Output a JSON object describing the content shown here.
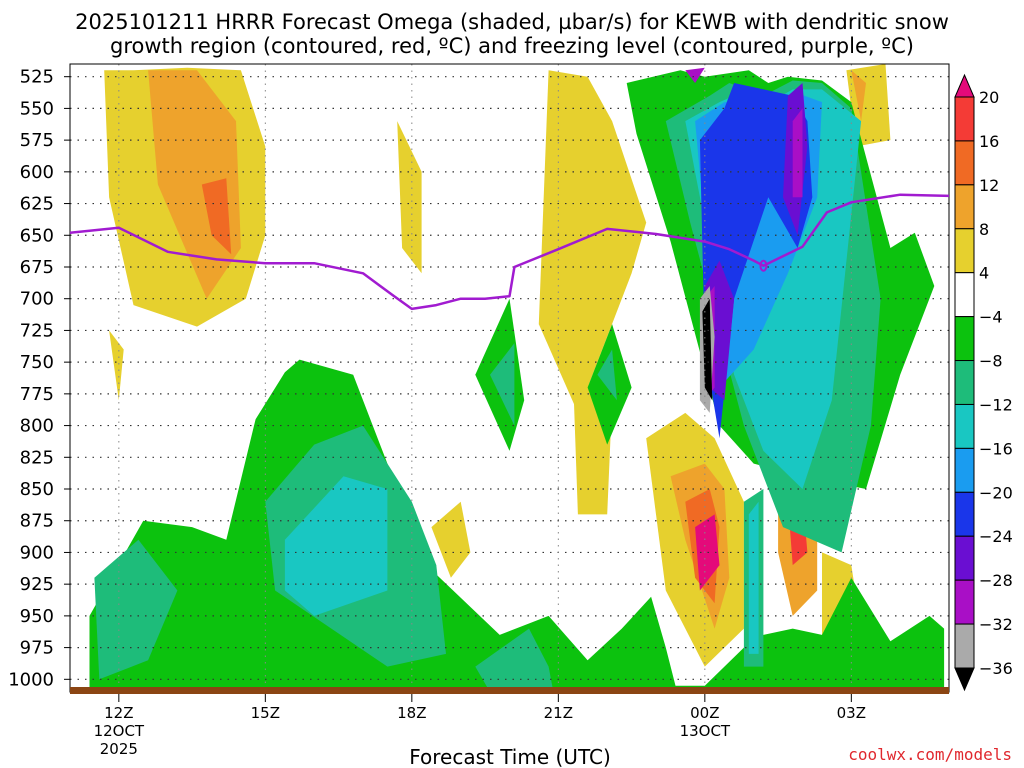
{
  "chart_data": {
    "type": "heatmap",
    "title_line1": "2025101211 HRRR Forecast Omega (shaded, µbar/s) for KEWB with dendritic snow",
    "title_line2": "growth region (contoured, red, ºC) and freezing level (contoured, purple, ºC)",
    "xlabel": "Forecast Time (UTC)",
    "credit": "coolwx.com/models",
    "xticks": [
      {
        "label": "12Z",
        "sub1": "12OCT",
        "sub2": "2025",
        "hour": 12
      },
      {
        "label": "15Z",
        "sub1": "",
        "sub2": "",
        "hour": 15
      },
      {
        "label": "18Z",
        "sub1": "",
        "sub2": "",
        "hour": 18
      },
      {
        "label": "21Z",
        "sub1": "",
        "sub2": "",
        "hour": 21
      },
      {
        "label": "00Z",
        "sub1": "13OCT",
        "sub2": "",
        "hour": 24
      },
      {
        "label": "03Z",
        "sub1": "",
        "sub2": "",
        "hour": 27
      }
    ],
    "xlim": [
      11,
      29
    ],
    "ylim": [
      1010,
      515
    ],
    "yticks": [
      525,
      550,
      575,
      600,
      625,
      650,
      675,
      700,
      725,
      750,
      775,
      800,
      825,
      850,
      875,
      900,
      925,
      950,
      975,
      1000
    ],
    "colorbar": {
      "levels": [
        "20",
        "16",
        "12",
        "8",
        "4",
        "−4",
        "−8",
        "−12",
        "−16",
        "−20",
        "−24",
        "−28",
        "−32",
        "−36"
      ],
      "colors": [
        "#e40a7a",
        "#f43b36",
        "#f06a24",
        "#eea32c",
        "#e6d02e",
        "#ffffff",
        "#0cc20e",
        "#1ebc7a",
        "#19c7c2",
        "#1a9cf0",
        "#1a36ea",
        "#6a0ed2",
        "#a90fc6",
        "#aaaaaa",
        "#000000"
      ]
    },
    "freezing_level": {
      "color": "#a11bd0",
      "hours": [
        11.0,
        12.0,
        13.0,
        14.0,
        15.0,
        16.0,
        17.0,
        17.6,
        18.0,
        18.5,
        19.0,
        19.5,
        20.0,
        20.1,
        21.0,
        22.0,
        23.0,
        24.0,
        24.5,
        25.0,
        25.2,
        26.0,
        26.5,
        27.0,
        28.0,
        29.0
      ],
      "pressure": [
        648,
        644,
        663,
        669,
        672,
        672,
        680,
        697,
        708,
        705,
        700,
        700,
        698,
        675,
        661,
        645,
        649,
        655,
        661,
        670,
        674,
        659,
        632,
        624,
        618,
        619
      ]
    },
    "regions": [
      {
        "color": "#e6d02e",
        "hours": [
          11.7,
          12.3,
          13.4,
          14.5,
          15.0,
          15.0,
          14.6,
          13.6,
          12.3,
          11.8
        ],
        "pressure": [
          520,
          520,
          518,
          520,
          580,
          650,
          700,
          722,
          705,
          620
        ]
      },
      {
        "color": "#eea32c",
        "hours": [
          12.6,
          13.6,
          14.4,
          14.5,
          13.8,
          12.8
        ],
        "pressure": [
          520,
          520,
          560,
          660,
          700,
          610
        ]
      },
      {
        "color": "#f06a24",
        "hours": [
          13.7,
          14.2,
          14.3,
          13.9
        ],
        "pressure": [
          610,
          605,
          665,
          650
        ]
      },
      {
        "color": "#e6d02e",
        "hours": [
          11.8,
          12.1,
          12.0
        ],
        "pressure": [
          725,
          740,
          780
        ]
      },
      {
        "color": "#e6d02e",
        "hours": [
          17.7,
          18.2,
          18.2,
          17.8
        ],
        "pressure": [
          560,
          600,
          680,
          660
        ]
      },
      {
        "color": "#e6d02e",
        "hours": [
          20.8,
          21.6,
          22.1,
          22.8,
          22.5,
          21.4,
          20.6
        ],
        "pressure": [
          520,
          525,
          560,
          640,
          680,
          790,
          720
        ]
      },
      {
        "color": "#e6d02e",
        "hours": [
          21.3,
          22.1,
          22.0,
          21.4
        ],
        "pressure": [
          760,
          780,
          870,
          870
        ]
      },
      {
        "color": "#e6d02e",
        "hours": [
          18.4,
          19.0,
          19.2,
          18.8
        ],
        "pressure": [
          880,
          860,
          900,
          920
        ]
      },
      {
        "color": "#e6d02e",
        "hours": [
          22.8,
          23.6,
          24.2,
          24.8,
          24.8,
          24.0,
          23.2
        ],
        "pressure": [
          810,
          790,
          810,
          860,
          960,
          990,
          930
        ]
      },
      {
        "color": "#e6d02e",
        "hours": [
          26.4,
          27.0,
          27.2,
          26.4
        ],
        "pressure": [
          900,
          910,
          960,
          975
        ]
      },
      {
        "color": "#e6d02e",
        "hours": [
          26.9,
          27.7,
          27.8,
          27.1
        ],
        "pressure": [
          520,
          515,
          575,
          580
        ]
      },
      {
        "color": "#eea32c",
        "hours": [
          27.0,
          27.3,
          27.2
        ],
        "pressure": [
          520,
          530,
          560
        ]
      },
      {
        "color": "#eea32c",
        "hours": [
          23.3,
          24.0,
          24.4,
          24.5,
          24.2,
          23.6
        ],
        "pressure": [
          840,
          830,
          850,
          920,
          960,
          890
        ]
      },
      {
        "color": "#f06a24",
        "hours": [
          23.6,
          24.1,
          24.3,
          24.2,
          23.8
        ],
        "pressure": [
          860,
          850,
          880,
          940,
          920
        ]
      },
      {
        "color": "#e40a7a",
        "hours": [
          23.8,
          24.2,
          24.3,
          23.9
        ],
        "pressure": [
          880,
          870,
          910,
          930
        ]
      },
      {
        "color": "#eea32c",
        "hours": [
          25.5,
          26.0,
          26.3,
          26.3,
          25.8,
          25.5
        ],
        "pressure": [
          840,
          830,
          870,
          930,
          950,
          900
        ]
      },
      {
        "color": "#f43b36",
        "hours": [
          25.7,
          26.0,
          26.1,
          25.8
        ],
        "pressure": [
          860,
          855,
          900,
          910
        ]
      },
      {
        "color": "#0cc20e",
        "hours": [
          11.4,
          12.5,
          13.5,
          14.2,
          14.8,
          15.4,
          15.7,
          16.8,
          18.3,
          19.8,
          20.8,
          21.6,
          22.3,
          22.9,
          23.2,
          23.4,
          24.0,
          24.8,
          25.2,
          25.8,
          26.4,
          27.0,
          27.8,
          28.6,
          28.9,
          28.9,
          11.4
        ],
        "pressure": [
          950,
          875,
          880,
          890,
          795,
          758,
          748,
          760,
          910,
          965,
          950,
          985,
          960,
          935,
          975,
          1005,
          1005,
          975,
          965,
          960,
          965,
          920,
          970,
          950,
          960,
          1012,
          1012
        ]
      },
      {
        "color": "#1ebc7a",
        "hours": [
          11.5,
          12.4,
          13.2,
          12.6,
          11.6
        ],
        "pressure": [
          920,
          890,
          930,
          985,
          1000
        ]
      },
      {
        "color": "#1ebc7a",
        "hours": [
          15.0,
          16.0,
          17.0,
          18.0,
          18.5,
          18.7,
          17.5,
          15.2
        ],
        "pressure": [
          860,
          815,
          800,
          860,
          910,
          980,
          990,
          930
        ]
      },
      {
        "color": "#19c7c2",
        "hours": [
          15.4,
          16.6,
          17.5,
          17.5,
          16.0,
          15.4
        ],
        "pressure": [
          890,
          840,
          850,
          930,
          950,
          930
        ]
      },
      {
        "color": "#1ebc7a",
        "hours": [
          19.3,
          20.4,
          20.8,
          20.9,
          19.6
        ],
        "pressure": [
          990,
          960,
          990,
          1010,
          1010
        ]
      },
      {
        "color": "#0cc20e",
        "hours": [
          19.3,
          20.0,
          20.3,
          20.0
        ],
        "pressure": [
          760,
          700,
          780,
          820
        ]
      },
      {
        "color": "#1ebc7a",
        "hours": [
          19.6,
          20.1,
          20.1
        ],
        "pressure": [
          760,
          735,
          800
        ]
      },
      {
        "color": "#0cc20e",
        "hours": [
          21.6,
          22.1,
          22.5,
          22.0
        ],
        "pressure": [
          770,
          720,
          770,
          815
        ]
      },
      {
        "color": "#1ebc7a",
        "hours": [
          21.8,
          22.1,
          22.2
        ],
        "pressure": [
          760,
          740,
          780
        ]
      },
      {
        "color": "#0cc20e",
        "hours": [
          22.4,
          23.5,
          24.0,
          24.9,
          25.3,
          25.7,
          26.4,
          27.0,
          27.8,
          28.3,
          28.7,
          28.0,
          27.3,
          26.0,
          25.0,
          24.3,
          23.3,
          22.6
        ],
        "pressure": [
          530,
          520,
          525,
          520,
          530,
          525,
          528,
          545,
          660,
          648,
          690,
          760,
          850,
          840,
          830,
          800,
          655,
          570
        ]
      },
      {
        "color": "#1ebc7a",
        "hours": [
          23.2,
          24.1,
          24.5,
          25.2,
          25.8,
          26.4,
          27.0,
          27.6,
          27.4,
          26.8,
          25.6,
          24.8,
          23.7
        ],
        "pressure": [
          560,
          540,
          530,
          540,
          528,
          530,
          550,
          700,
          800,
          900,
          880,
          800,
          640
        ]
      },
      {
        "color": "#19c7c2",
        "hours": [
          23.6,
          24.3,
          24.6,
          25.2,
          25.8,
          26.4,
          27.2,
          26.6,
          26.0,
          25.2,
          24.6
        ],
        "pressure": [
          560,
          545,
          540,
          548,
          535,
          535,
          560,
          780,
          850,
          820,
          760
        ]
      },
      {
        "color": "#1ebc7a",
        "hours": [
          24.8,
          25.2,
          25.2,
          24.8
        ],
        "pressure": [
          860,
          850,
          990,
          990
        ]
      },
      {
        "color": "#19c7c2",
        "hours": [
          24.9,
          25.1,
          25.1,
          24.9
        ],
        "pressure": [
          870,
          860,
          980,
          980
        ]
      },
      {
        "color": "#1a9cf0",
        "hours": [
          23.8,
          24.4,
          24.8,
          25.4,
          25.9,
          26.4,
          26.3,
          25.7,
          25.0,
          24.3
        ],
        "pressure": [
          560,
          545,
          545,
          550,
          538,
          545,
          620,
          680,
          740,
          770
        ]
      },
      {
        "color": "#1a36ea",
        "hours": [
          23.9,
          24.4,
          24.6,
          25.8,
          26.1,
          26.2,
          25.9,
          25.3,
          24.6,
          24.3,
          24.0
        ],
        "pressure": [
          575,
          550,
          530,
          540,
          560,
          620,
          660,
          620,
          700,
          810,
          740
        ]
      },
      {
        "color": "#6a0ed2",
        "hours": [
          24.0,
          24.3,
          24.6,
          24.4,
          24.1
        ],
        "pressure": [
          690,
          670,
          700,
          780,
          770
        ]
      },
      {
        "color": "#6a0ed2",
        "hours": [
          25.7,
          26.0,
          26.1,
          25.9,
          25.6
        ],
        "pressure": [
          540,
          530,
          580,
          650,
          620
        ]
      },
      {
        "color": "#a90fc6",
        "hours": [
          25.8,
          26.0,
          26.0,
          25.8
        ],
        "pressure": [
          560,
          550,
          620,
          620
        ]
      },
      {
        "color": "#a90fc6",
        "hours": [
          23.6,
          24.0,
          23.8
        ],
        "pressure": [
          520,
          518,
          530
        ]
      },
      {
        "color": "#a90fc6",
        "hours": [
          24.0,
          24.2,
          24.2,
          24.0
        ],
        "pressure": [
          700,
          690,
          770,
          780
        ]
      },
      {
        "color": "#aaaaaa",
        "hours": [
          23.9,
          24.1,
          24.2,
          24.1,
          23.9
        ],
        "pressure": [
          700,
          690,
          730,
          790,
          780
        ]
      },
      {
        "color": "#000000",
        "hours": [
          23.95,
          24.1,
          24.15,
          24.0
        ],
        "pressure": [
          710,
          700,
          780,
          770
        ]
      }
    ]
  }
}
